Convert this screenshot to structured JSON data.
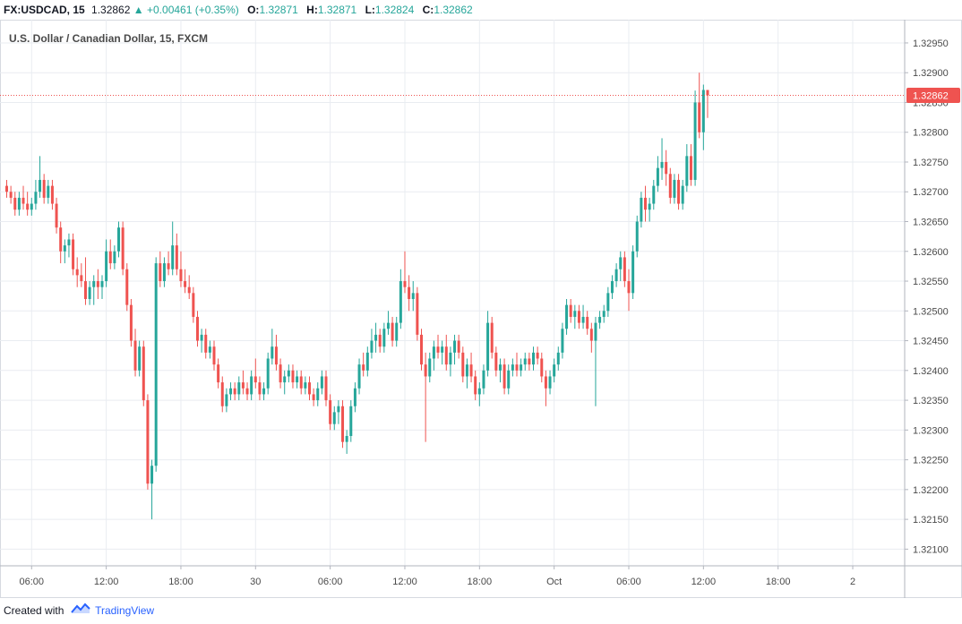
{
  "header": {
    "symbol": "FX:USDCAD, 15",
    "last": "1.32862",
    "arrow": "▲",
    "change": "+0.00461 (+0.35%)",
    "o_label": "O:",
    "o_value": "1.32871",
    "h_label": "H:",
    "h_value": "1.32871",
    "l_label": "L:",
    "l_value": "1.32824",
    "c_label": "C:",
    "c_value": "1.32862"
  },
  "footer": {
    "created_with": "Created with",
    "brand": "TradingView"
  },
  "colors": {
    "up": "#26a69a",
    "down": "#ef5350",
    "grid": "#e9ecf1",
    "axis_text": "#4a4a4a",
    "price_line": "#ef5350"
  },
  "chart_data": {
    "type": "candlestick",
    "title": "U.S. Dollar / Canadian Dollar, 15, FXCM",
    "ylim": [
      1.32072,
      1.32989
    ],
    "y_ticks": [
      "1.32100",
      "1.32150",
      "1.32200",
      "1.32250",
      "1.32300",
      "1.32350",
      "1.32400",
      "1.32450",
      "1.32500",
      "1.32550",
      "1.32600",
      "1.32650",
      "1.32700",
      "1.32750",
      "1.32800",
      "1.32850",
      "1.32900",
      "1.32950"
    ],
    "x_ticks": [
      "06:00",
      "12:00",
      "18:00",
      "30",
      "06:00",
      "12:00",
      "18:00",
      "Oct",
      "06:00",
      "12:00",
      "18:00",
      "2"
    ],
    "x_tick_bars": [
      6,
      24,
      42,
      60,
      78,
      96,
      114,
      132,
      150,
      168,
      186,
      204
    ],
    "current_price": "1.32862",
    "candles": [
      [
        1.3271,
        1.3272,
        1.3269,
        1.327
      ],
      [
        1.327,
        1.3271,
        1.3268,
        1.3269
      ],
      [
        1.3269,
        1.327,
        1.3266,
        1.3267
      ],
      [
        1.3267,
        1.327,
        1.3266,
        1.3269
      ],
      [
        1.3269,
        1.3271,
        1.3267,
        1.3268
      ],
      [
        1.3268,
        1.327,
        1.3266,
        1.3267
      ],
      [
        1.3267,
        1.3269,
        1.3266,
        1.3268
      ],
      [
        1.3268,
        1.3272,
        1.3267,
        1.327
      ],
      [
        1.327,
        1.3276,
        1.3269,
        1.3272
      ],
      [
        1.3272,
        1.3273,
        1.3268,
        1.3269
      ],
      [
        1.3269,
        1.3272,
        1.3268,
        1.3271
      ],
      [
        1.3271,
        1.3272,
        1.3267,
        1.3268
      ],
      [
        1.3268,
        1.3269,
        1.3263,
        1.3264
      ],
      [
        1.3264,
        1.3265,
        1.3258,
        1.326
      ],
      [
        1.326,
        1.3262,
        1.3258,
        1.3261
      ],
      [
        1.3261,
        1.3263,
        1.3259,
        1.3262
      ],
      [
        1.3262,
        1.3263,
        1.3256,
        1.3257
      ],
      [
        1.3257,
        1.3259,
        1.3254,
        1.3256
      ],
      [
        1.3256,
        1.3258,
        1.3254,
        1.3255
      ],
      [
        1.3255,
        1.3259,
        1.3251,
        1.3252
      ],
      [
        1.3252,
        1.3255,
        1.3251,
        1.3254
      ],
      [
        1.3254,
        1.3256,
        1.3251,
        1.3255
      ],
      [
        1.3255,
        1.3257,
        1.3252,
        1.3254
      ],
      [
        1.3254,
        1.3256,
        1.3252,
        1.3255
      ],
      [
        1.3255,
        1.3262,
        1.3254,
        1.326
      ],
      [
        1.326,
        1.3262,
        1.3257,
        1.3258
      ],
      [
        1.3258,
        1.3261,
        1.3257,
        1.326
      ],
      [
        1.326,
        1.3265,
        1.3259,
        1.3264
      ],
      [
        1.3264,
        1.3265,
        1.3256,
        1.3257
      ],
      [
        1.3257,
        1.3258,
        1.325,
        1.3251
      ],
      [
        1.3251,
        1.3252,
        1.3244,
        1.3245
      ],
      [
        1.3245,
        1.3247,
        1.3239,
        1.324
      ],
      [
        1.324,
        1.3245,
        1.3239,
        1.3244
      ],
      [
        1.3244,
        1.3245,
        1.3234,
        1.3235
      ],
      [
        1.3235,
        1.3236,
        1.322,
        1.3221
      ],
      [
        1.3221,
        1.3225,
        1.3215,
        1.3224
      ],
      [
        1.3224,
        1.3259,
        1.3223,
        1.3258
      ],
      [
        1.3258,
        1.326,
        1.3254,
        1.3255
      ],
      [
        1.3255,
        1.3259,
        1.3254,
        1.3258
      ],
      [
        1.3258,
        1.326,
        1.3256,
        1.3257
      ],
      [
        1.3257,
        1.3265,
        1.3256,
        1.3261
      ],
      [
        1.3261,
        1.3263,
        1.3256,
        1.3257
      ],
      [
        1.3257,
        1.326,
        1.3254,
        1.3255
      ],
      [
        1.3255,
        1.3257,
        1.3253,
        1.3254
      ],
      [
        1.3254,
        1.3256,
        1.3252,
        1.3253
      ],
      [
        1.3253,
        1.3254,
        1.3248,
        1.3249
      ],
      [
        1.3249,
        1.325,
        1.3244,
        1.3245
      ],
      [
        1.3245,
        1.3247,
        1.3243,
        1.3246
      ],
      [
        1.3246,
        1.3247,
        1.3242,
        1.3243
      ],
      [
        1.3243,
        1.3245,
        1.3242,
        1.3244
      ],
      [
        1.3244,
        1.3245,
        1.324,
        1.3241
      ],
      [
        1.3241,
        1.3242,
        1.3237,
        1.3238
      ],
      [
        1.3238,
        1.3239,
        1.3233,
        1.3234
      ],
      [
        1.3234,
        1.3237,
        1.3233,
        1.3236
      ],
      [
        1.3236,
        1.3238,
        1.3235,
        1.3237
      ],
      [
        1.3237,
        1.3238,
        1.3235,
        1.3236
      ],
      [
        1.3236,
        1.3239,
        1.3235,
        1.3238
      ],
      [
        1.3238,
        1.324,
        1.3236,
        1.3237
      ],
      [
        1.3237,
        1.3238,
        1.3235,
        1.3236
      ],
      [
        1.3236,
        1.324,
        1.3235,
        1.3239
      ],
      [
        1.3239,
        1.3242,
        1.3237,
        1.3238
      ],
      [
        1.3238,
        1.3239,
        1.3235,
        1.3236
      ],
      [
        1.3236,
        1.3238,
        1.3235,
        1.3237
      ],
      [
        1.3237,
        1.3243,
        1.3236,
        1.3242
      ],
      [
        1.3242,
        1.3247,
        1.3241,
        1.3244
      ],
      [
        1.3244,
        1.3246,
        1.324,
        1.3241
      ],
      [
        1.3241,
        1.3242,
        1.3237,
        1.3238
      ],
      [
        1.3238,
        1.324,
        1.3236,
        1.3239
      ],
      [
        1.3239,
        1.3241,
        1.3238,
        1.324
      ],
      [
        1.324,
        1.3241,
        1.3237,
        1.3238
      ],
      [
        1.3238,
        1.324,
        1.3237,
        1.3239
      ],
      [
        1.3239,
        1.324,
        1.3236,
        1.3237
      ],
      [
        1.3237,
        1.3239,
        1.3236,
        1.3238
      ],
      [
        1.3238,
        1.3239,
        1.3235,
        1.3236
      ],
      [
        1.3236,
        1.3237,
        1.3234,
        1.3235
      ],
      [
        1.3235,
        1.3238,
        1.3234,
        1.3237
      ],
      [
        1.3237,
        1.324,
        1.3236,
        1.3239
      ],
      [
        1.3239,
        1.324,
        1.3234,
        1.3235
      ],
      [
        1.3235,
        1.3236,
        1.323,
        1.3231
      ],
      [
        1.3231,
        1.3234,
        1.323,
        1.3233
      ],
      [
        1.3233,
        1.3235,
        1.3231,
        1.3234
      ],
      [
        1.3234,
        1.3235,
        1.3227,
        1.3228
      ],
      [
        1.3228,
        1.323,
        1.3226,
        1.3229
      ],
      [
        1.3229,
        1.3235,
        1.3228,
        1.3234
      ],
      [
        1.3234,
        1.3238,
        1.3233,
        1.3237
      ],
      [
        1.3237,
        1.3242,
        1.3236,
        1.3241
      ],
      [
        1.3241,
        1.3243,
        1.3239,
        1.324
      ],
      [
        1.324,
        1.3244,
        1.3239,
        1.3243
      ],
      [
        1.3243,
        1.3247,
        1.3242,
        1.3245
      ],
      [
        1.3245,
        1.3248,
        1.3243,
        1.3246
      ],
      [
        1.3246,
        1.3247,
        1.3243,
        1.3244
      ],
      [
        1.3244,
        1.3248,
        1.3243,
        1.3247
      ],
      [
        1.3247,
        1.325,
        1.3246,
        1.3248
      ],
      [
        1.3248,
        1.3249,
        1.3244,
        1.3245
      ],
      [
        1.3245,
        1.3249,
        1.3244,
        1.3248
      ],
      [
        1.3248,
        1.3257,
        1.3247,
        1.3255
      ],
      [
        1.3255,
        1.326,
        1.3253,
        1.3254
      ],
      [
        1.3254,
        1.3256,
        1.325,
        1.3252
      ],
      [
        1.3252,
        1.3255,
        1.325,
        1.3253
      ],
      [
        1.3253,
        1.3254,
        1.3245,
        1.3246
      ],
      [
        1.3246,
        1.3247,
        1.324,
        1.3241
      ],
      [
        1.3241,
        1.3243,
        1.3228,
        1.3239
      ],
      [
        1.3239,
        1.3243,
        1.3238,
        1.3242
      ],
      [
        1.3242,
        1.3245,
        1.324,
        1.3244
      ],
      [
        1.3244,
        1.3246,
        1.3242,
        1.3243
      ],
      [
        1.3243,
        1.3245,
        1.3241,
        1.3244
      ],
      [
        1.3244,
        1.3246,
        1.324,
        1.3241
      ],
      [
        1.3241,
        1.3244,
        1.3239,
        1.3243
      ],
      [
        1.3243,
        1.3246,
        1.3241,
        1.3245
      ],
      [
        1.3245,
        1.3246,
        1.3242,
        1.3243
      ],
      [
        1.3243,
        1.3244,
        1.3238,
        1.3239
      ],
      [
        1.3239,
        1.3242,
        1.3237,
        1.3241
      ],
      [
        1.3241,
        1.3243,
        1.3238,
        1.3239
      ],
      [
        1.3239,
        1.324,
        1.3235,
        1.3236
      ],
      [
        1.3236,
        1.3238,
        1.3234,
        1.3237
      ],
      [
        1.3237,
        1.3241,
        1.3236,
        1.324
      ],
      [
        1.324,
        1.325,
        1.3239,
        1.3248
      ],
      [
        1.3248,
        1.3249,
        1.3242,
        1.3243
      ],
      [
        1.3243,
        1.3244,
        1.3239,
        1.324
      ],
      [
        1.324,
        1.3242,
        1.3238,
        1.3241
      ],
      [
        1.3241,
        1.3242,
        1.3236,
        1.3237
      ],
      [
        1.3237,
        1.3241,
        1.3236,
        1.324
      ],
      [
        1.324,
        1.3242,
        1.3239,
        1.3241
      ],
      [
        1.3241,
        1.3243,
        1.3239,
        1.324
      ],
      [
        1.324,
        1.3242,
        1.3239,
        1.3241
      ],
      [
        1.3241,
        1.3243,
        1.324,
        1.3242
      ],
      [
        1.3242,
        1.3243,
        1.324,
        1.3241
      ],
      [
        1.3241,
        1.3244,
        1.324,
        1.3243
      ],
      [
        1.3243,
        1.3244,
        1.3241,
        1.3242
      ],
      [
        1.3242,
        1.3243,
        1.3238,
        1.3239
      ],
      [
        1.3239,
        1.324,
        1.3234,
        1.3237
      ],
      [
        1.3237,
        1.324,
        1.3236,
        1.3239
      ],
      [
        1.3239,
        1.3242,
        1.3238,
        1.3241
      ],
      [
        1.3241,
        1.3244,
        1.324,
        1.3243
      ],
      [
        1.3243,
        1.3248,
        1.3242,
        1.3247
      ],
      [
        1.3247,
        1.3252,
        1.3246,
        1.3251
      ],
      [
        1.3251,
        1.3252,
        1.3248,
        1.3249
      ],
      [
        1.3249,
        1.3251,
        1.3247,
        1.325
      ],
      [
        1.325,
        1.3251,
        1.3247,
        1.3248
      ],
      [
        1.3248,
        1.3251,
        1.3247,
        1.3249
      ],
      [
        1.3249,
        1.325,
        1.3246,
        1.3247
      ],
      [
        1.3247,
        1.3248,
        1.3243,
        1.3245
      ],
      [
        1.3245,
        1.3249,
        1.3234,
        1.3248
      ],
      [
        1.3248,
        1.325,
        1.3247,
        1.3249
      ],
      [
        1.3249,
        1.3251,
        1.3248,
        1.325
      ],
      [
        1.325,
        1.3254,
        1.3249,
        1.3253
      ],
      [
        1.3253,
        1.3256,
        1.3252,
        1.3255
      ],
      [
        1.3255,
        1.3258,
        1.3254,
        1.3257
      ],
      [
        1.3257,
        1.326,
        1.3255,
        1.3259
      ],
      [
        1.3259,
        1.326,
        1.3254,
        1.3255
      ],
      [
        1.3255,
        1.3257,
        1.325,
        1.3253
      ],
      [
        1.3253,
        1.3261,
        1.3252,
        1.326
      ],
      [
        1.326,
        1.3266,
        1.3259,
        1.3265
      ],
      [
        1.3265,
        1.327,
        1.3264,
        1.3269
      ],
      [
        1.3269,
        1.3271,
        1.3265,
        1.3267
      ],
      [
        1.3267,
        1.3269,
        1.3265,
        1.3268
      ],
      [
        1.3268,
        1.3272,
        1.3267,
        1.3271
      ],
      [
        1.3271,
        1.3276,
        1.327,
        1.3274
      ],
      [
        1.3274,
        1.3279,
        1.3272,
        1.3275
      ],
      [
        1.3275,
        1.3277,
        1.3271,
        1.3273
      ],
      [
        1.3273,
        1.3274,
        1.3268,
        1.3269
      ],
      [
        1.3269,
        1.3273,
        1.3268,
        1.3272
      ],
      [
        1.3272,
        1.3273,
        1.3267,
        1.3268
      ],
      [
        1.3268,
        1.3272,
        1.3267,
        1.3271
      ],
      [
        1.3271,
        1.3278,
        1.327,
        1.3276
      ],
      [
        1.3276,
        1.3278,
        1.3271,
        1.3272
      ],
      [
        1.3272,
        1.3287,
        1.3271,
        1.3285
      ],
      [
        1.3285,
        1.329,
        1.3279,
        1.328
      ],
      [
        1.328,
        1.3288,
        1.3277,
        1.32871
      ],
      [
        1.32871,
        1.32871,
        1.32824,
        1.32862
      ]
    ]
  }
}
